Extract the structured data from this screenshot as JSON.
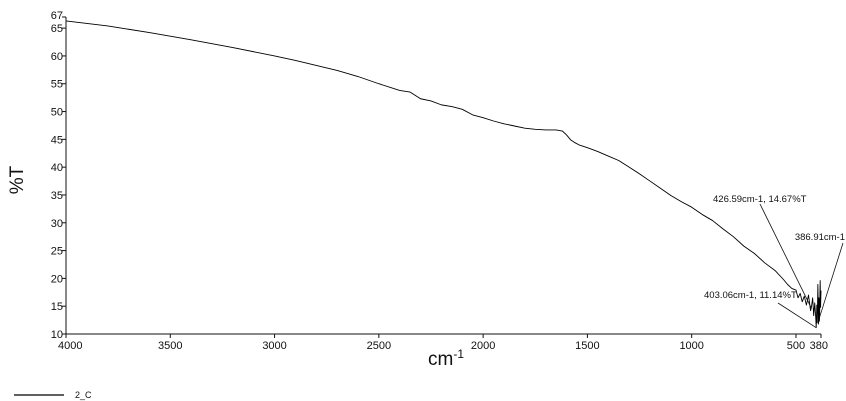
{
  "chart_data": {
    "type": "line",
    "title": "",
    "xlabel": "cm",
    "xlabel_superscript": "-1",
    "ylabel": "%T",
    "xlim": [
      4000,
      380
    ],
    "ylim": [
      10,
      67
    ],
    "x_ticks": [
      "4000",
      "3500",
      "3000",
      "2500",
      "2000",
      "1500",
      "1000",
      "500",
      "380"
    ],
    "y_ticks": [
      "10",
      "15",
      "20",
      "25",
      "30",
      "35",
      "40",
      "45",
      "50",
      "55",
      "60",
      "65",
      "67"
    ],
    "grid": false,
    "legend": {
      "position": "bottom-left",
      "entries": [
        {
          "name": "2_C",
          "color": "#000000"
        }
      ]
    },
    "series": [
      {
        "name": "2_C",
        "color": "#000000",
        "x": [
          4000,
          3800,
          3600,
          3400,
          3200,
          3000,
          2900,
          2800,
          2700,
          2600,
          2500,
          2400,
          2350,
          2300,
          2250,
          2200,
          2150,
          2100,
          2050,
          2000,
          1950,
          1900,
          1850,
          1800,
          1750,
          1700,
          1650,
          1620,
          1600,
          1580,
          1560,
          1540,
          1500,
          1450,
          1400,
          1350,
          1300,
          1250,
          1200,
          1150,
          1100,
          1050,
          1000,
          950,
          900,
          850,
          800,
          750,
          700,
          650,
          600,
          560,
          540,
          520,
          500,
          490,
          480,
          470,
          460,
          450,
          440,
          430,
          426.59,
          420,
          415,
          410,
          405,
          403.06,
          400,
          398,
          395,
          392,
          390,
          388,
          386.91,
          384,
          382,
          380
        ],
        "y": [
          66.3,
          65.4,
          64.2,
          62.9,
          61.5,
          60.0,
          59.2,
          58.3,
          57.4,
          56.3,
          55.0,
          53.8,
          53.5,
          52.3,
          51.9,
          51.2,
          50.9,
          50.4,
          49.4,
          48.9,
          48.3,
          47.8,
          47.4,
          47.0,
          46.8,
          46.7,
          46.7,
          46.5,
          45.8,
          44.9,
          44.4,
          44.0,
          43.5,
          42.8,
          42.0,
          41.2,
          40.0,
          38.8,
          37.5,
          36.2,
          34.9,
          33.8,
          32.8,
          31.5,
          30.4,
          28.9,
          27.5,
          25.8,
          24.5,
          22.8,
          21.4,
          19.8,
          18.9,
          18.2,
          17.9,
          16.5,
          17.3,
          15.8,
          16.8,
          15.2,
          17.0,
          14.2,
          14.67,
          16.5,
          13.3,
          15.6,
          12.8,
          11.14,
          15.2,
          12.0,
          18.9,
          11.8,
          16.5,
          12.3,
          13.0,
          19.6,
          14.8,
          17.8
        ]
      }
    ],
    "annotations": [
      {
        "text": "426.59cm-1, 14.67%T",
        "x": 426.59,
        "y": 14.67
      },
      {
        "text": "403.06cm-1, 11.14%T",
        "x": 403.06,
        "y": 11.14
      },
      {
        "text": "386.91cm-1",
        "x": 386.91,
        "y": 13.0
      }
    ]
  }
}
